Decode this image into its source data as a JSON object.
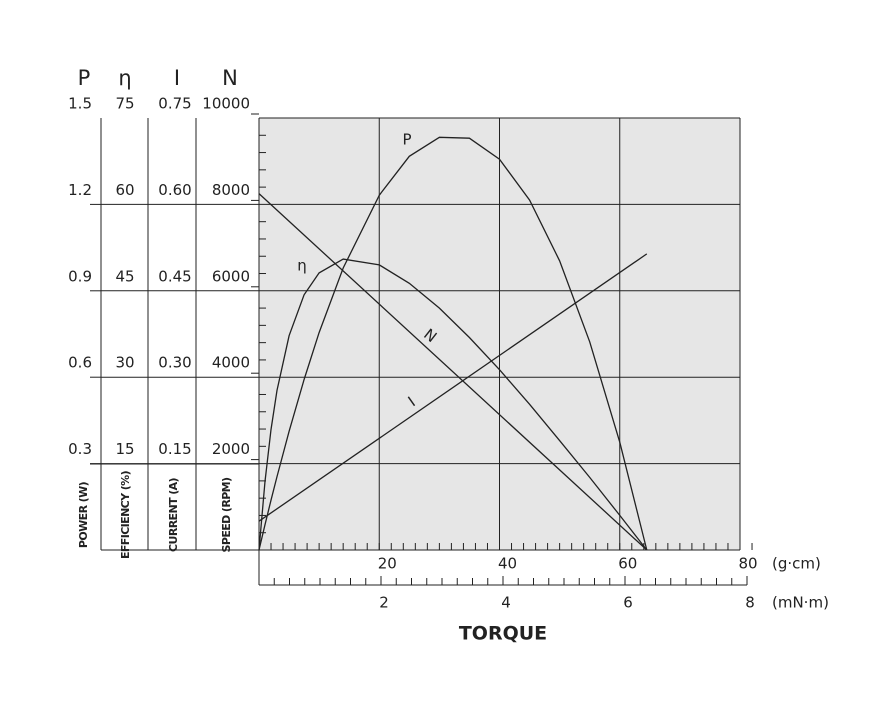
{
  "chart_data": {
    "type": "line",
    "x_label": "TORQUE",
    "xlim": [
      0,
      80
    ],
    "xticks": [
      20,
      40,
      60,
      80
    ],
    "x_unit": "(g·cm)",
    "x2lim": [
      0,
      8
    ],
    "x2ticks": [
      2,
      4,
      6,
      8
    ],
    "x2_unit": "(mN·m)",
    "grid": true,
    "background": "#e6e6e6",
    "color": "#222222",
    "y_axes": [
      {
        "symbol": "P",
        "label": "POWER (W)",
        "ylim": [
          0,
          1.5
        ],
        "yticks": [
          0.3,
          0.6,
          0.9,
          1.2,
          1.5
        ],
        "curve": {
          "name": "P",
          "x": [
            0,
            1,
            2,
            3,
            5,
            7.5,
            10,
            14,
            20,
            25,
            30,
            35,
            40,
            45,
            50,
            55,
            60,
            64.5
          ],
          "values": [
            0,
            0.088,
            0.173,
            0.255,
            0.412,
            0.592,
            0.755,
            0.979,
            1.232,
            1.367,
            1.433,
            1.43,
            1.357,
            1.215,
            1.004,
            0.723,
            0.374,
            0
          ]
        }
      },
      {
        "symbol": "η",
        "label": "EFFICIENCY (%)",
        "ylim": [
          0,
          75
        ],
        "yticks": [
          15,
          30,
          45,
          60,
          75
        ],
        "curve": {
          "name": "η",
          "x": [
            0,
            1,
            2,
            3,
            5,
            7.5,
            10,
            14,
            20,
            25,
            30,
            35,
            40,
            45,
            50,
            55,
            60,
            64.5
          ],
          "values": [
            0,
            11.9,
            20.9,
            27.7,
            37.2,
            44.3,
            48.1,
            50.5,
            49.5,
            46.3,
            42,
            36.9,
            31.3,
            25.3,
            19,
            12.6,
            6,
            0
          ]
        }
      },
      {
        "symbol": "I",
        "label": "CURRENT (A)",
        "ylim": [
          0,
          0.75
        ],
        "yticks": [
          0.15,
          {
            "value": 0.3,
            "label": "0.30"
          },
          0.45,
          {
            "value": 0.6,
            "label": "0.60"
          },
          0.75
        ],
        "curve": {
          "name": "I",
          "x": [
            0,
            64.5
          ],
          "values": [
            0.05,
            0.514
          ]
        }
      },
      {
        "symbol": "N",
        "label": "SPEED (RPM)",
        "ylim": [
          0,
          10000
        ],
        "yticks": [
          2000,
          4000,
          6000,
          8000,
          10000
        ],
        "curve": {
          "name": "N",
          "x": [
            0,
            64.5
          ],
          "values": [
            8250,
            0
          ]
        }
      }
    ]
  }
}
